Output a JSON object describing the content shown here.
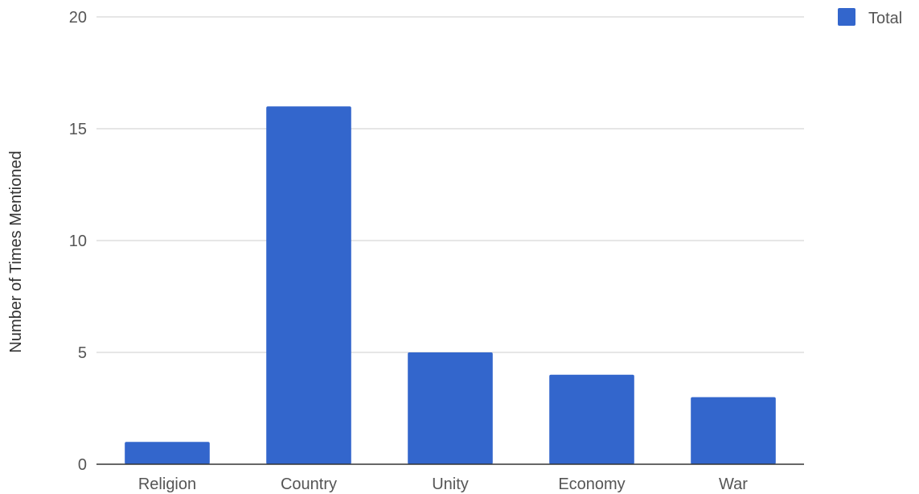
{
  "chart_data": {
    "type": "bar",
    "title": "",
    "xlabel": "",
    "ylabel": "Number of Times Mentioned",
    "categories": [
      "Religion",
      "Country",
      "Unity",
      "Economy",
      "War"
    ],
    "series": [
      {
        "name": "Total",
        "color": "#3366cc",
        "values": [
          1,
          16,
          5,
          4,
          3
        ]
      }
    ],
    "ylim": [
      0,
      20
    ],
    "yticks": [
      0,
      5,
      10,
      15,
      20
    ],
    "grid": true,
    "legend_position": "top-right"
  }
}
